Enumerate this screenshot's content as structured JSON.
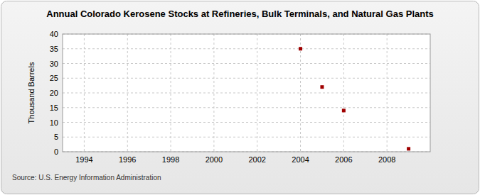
{
  "chart_data": {
    "type": "scatter",
    "title": "Annual Colorado Kerosene Stocks at Refineries, Bulk Terminals, and Natural Gas Plants",
    "y_label": "Thousand Barrels",
    "source": "Source: U.S. Energy Information Administration",
    "x": [
      2004,
      2005,
      2006,
      2009
    ],
    "values": [
      35,
      22,
      14,
      1
    ],
    "color": "#a00000",
    "marker": "square",
    "xlim": [
      1993,
      2010
    ],
    "xticks": [
      1994,
      1996,
      1998,
      2000,
      2002,
      2004,
      2006,
      2008
    ],
    "ylim": [
      0,
      40
    ],
    "yticks": [
      0,
      5,
      10,
      15,
      20,
      25,
      30,
      35,
      40
    ],
    "grid": true
  }
}
